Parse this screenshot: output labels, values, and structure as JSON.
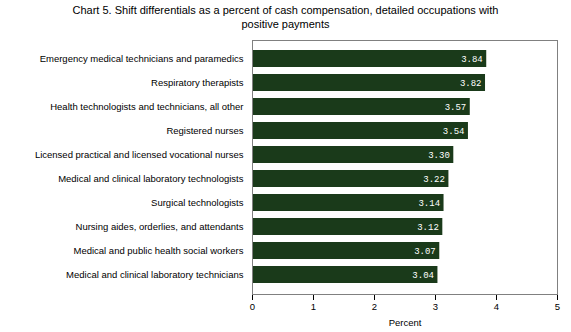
{
  "chart_data": {
    "type": "bar",
    "orientation": "horizontal",
    "title": "Chart 5. Shift differentials as a percent of cash compensation, detailed occupations with\npositive payments",
    "categories": [
      "Medical and clinical laboratory technicians",
      "Medical and public health social workers",
      "Nursing aides, orderlies, and attendants",
      "Surgical technologists",
      "Medical and clinical laboratory technologists",
      "Licensed practical and licensed vocational nurses",
      "Registered nurses",
      "Health technologists and technicians, all other",
      "Respiratory therapists",
      "Emergency medical technicians and paramedics"
    ],
    "values": [
      3.04,
      3.07,
      3.12,
      3.14,
      3.22,
      3.3,
      3.54,
      3.57,
      3.82,
      3.84
    ],
    "value_labels": [
      "3.04",
      "3.07",
      "3.12",
      "3.14",
      "3.22",
      "3.30",
      "3.54",
      "3.57",
      "3.82",
      "3.84"
    ],
    "data_labels": true,
    "color": "#1a3a1a",
    "xlabel": "Percent",
    "xlim": [
      0,
      5
    ],
    "xticks": [
      0,
      1,
      2,
      3,
      4,
      5
    ],
    "grid": false
  }
}
